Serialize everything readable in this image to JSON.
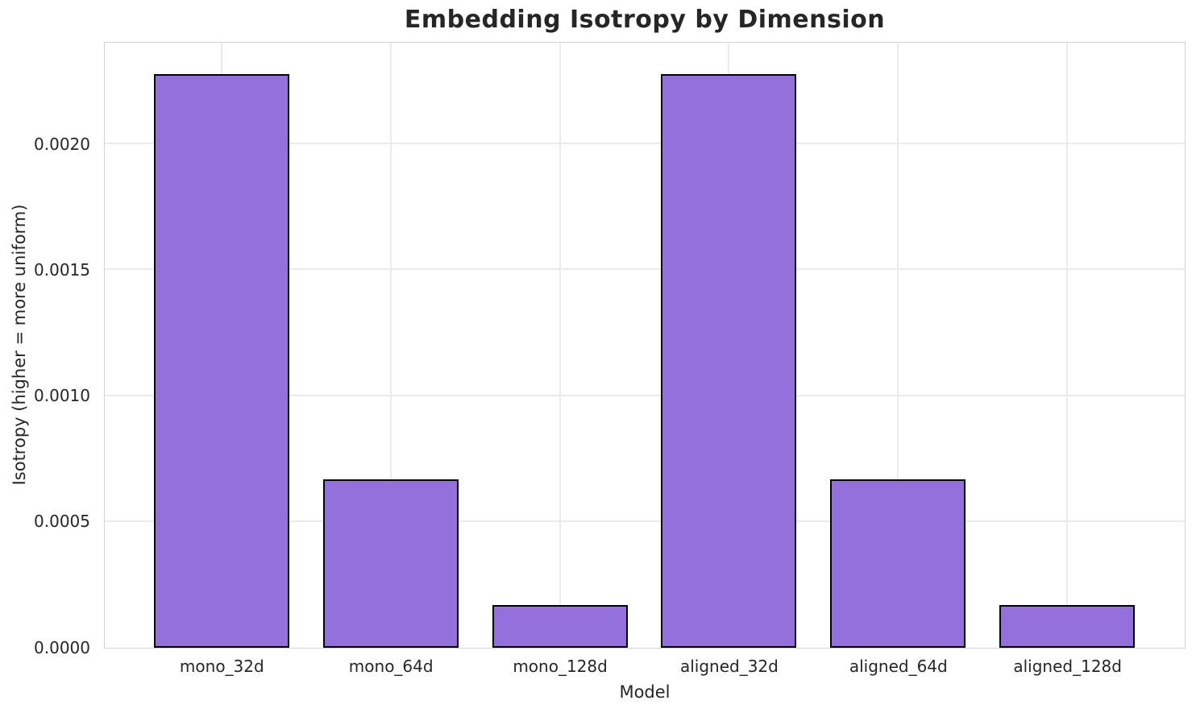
{
  "chart_data": {
    "type": "bar",
    "title": "Embedding Isotropy by Dimension",
    "xlabel": "Model",
    "ylabel": "Isotropy (higher = more uniform)",
    "categories": [
      "mono_32d",
      "mono_64d",
      "mono_128d",
      "aligned_32d",
      "aligned_64d",
      "aligned_128d"
    ],
    "values": [
      0.00228,
      0.00067,
      0.00017,
      0.00228,
      0.00067,
      0.00017
    ],
    "ylim": [
      0.0,
      0.0024
    ],
    "yticks": [
      "0.0000",
      "0.0005",
      "0.0010",
      "0.0015",
      "0.0020"
    ],
    "ytick_values": [
      0.0,
      0.0005,
      0.001,
      0.0015,
      0.002
    ],
    "grid": true,
    "legend": "none",
    "colors": {
      "bar_fill": "#9370DB",
      "bar_edge": "#000000",
      "grid": "#ebebeb",
      "spine": "#d4d4d4",
      "text": "#262626",
      "background": "#ffffff"
    }
  }
}
